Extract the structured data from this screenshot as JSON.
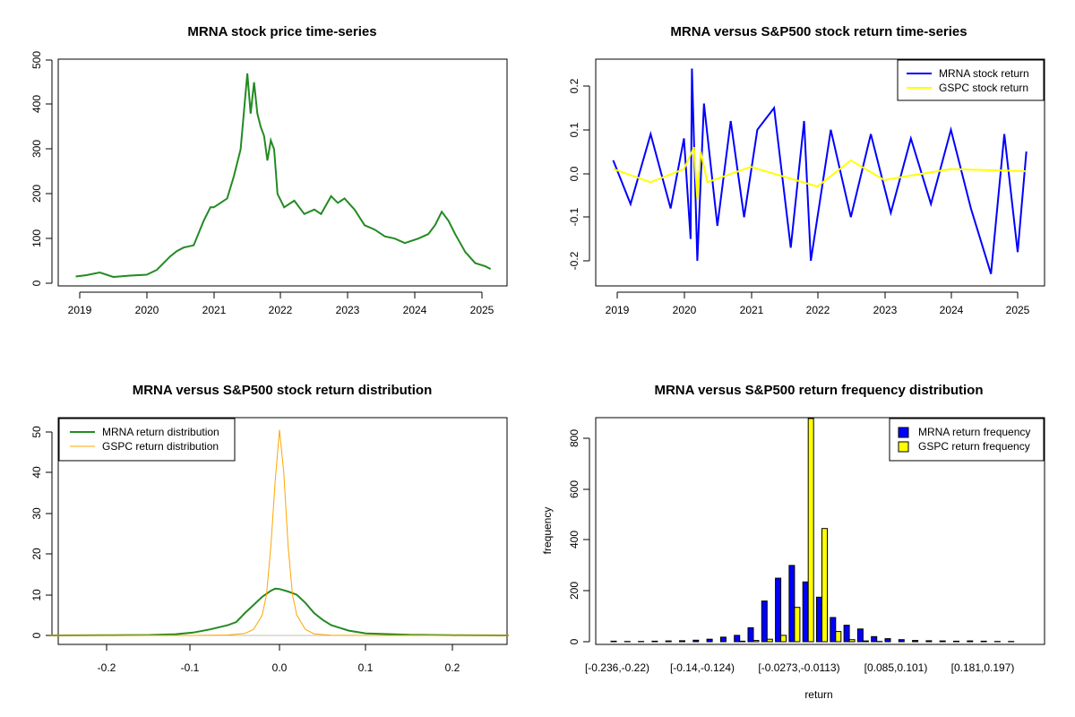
{
  "colors": {
    "mrna_price": "#228B22",
    "mrna_return": "#0000FF",
    "gspc_return": "#FFFF00",
    "mrna_density": "#228B22",
    "gspc_density": "#FFA500",
    "hist_mrna": "#0000FF",
    "hist_gspc": "#FFFF00"
  },
  "chart_data": [
    {
      "type": "line",
      "title": "MRNA stock price time-series",
      "xlabel": "",
      "ylabel": "",
      "xlim": [
        2018.85,
        2025.35
      ],
      "ylim": [
        -10,
        505
      ],
      "x_ticks": [
        2019,
        2020,
        2021,
        2022,
        2023,
        2024,
        2025
      ],
      "x_tick_labels": [
        "2019",
        "2020",
        "2021",
        "2022",
        "2023",
        "2024",
        "2025"
      ],
      "y_ticks": [
        0,
        100,
        200,
        300,
        400,
        500
      ],
      "y_tick_labels": [
        "0",
        "100",
        "200",
        "300",
        "400",
        "500"
      ],
      "grid": false,
      "series": [
        {
          "x": [
            2018.94,
            2019.1,
            2019.3,
            2019.5,
            2019.75,
            2020.0,
            2020.15,
            2020.35,
            2020.45,
            2020.55,
            2020.7,
            2020.85,
            2020.95,
            2021.0,
            2021.1,
            2021.2,
            2021.3,
            2021.4,
            2021.5,
            2021.55,
            2021.6,
            2021.65,
            2021.7,
            2021.75,
            2021.8,
            2021.85,
            2021.9,
            2021.95,
            2022.05,
            2022.2,
            2022.35,
            2022.5,
            2022.6,
            2022.75,
            2022.85,
            2022.95,
            2023.1,
            2023.25,
            2023.4,
            2023.55,
            2023.7,
            2023.85,
            2023.95,
            2024.05,
            2024.2,
            2024.3,
            2024.4,
            2024.5,
            2024.6,
            2024.75,
            2024.9,
            2025.05,
            2025.13
          ],
          "values": [
            15,
            18,
            24,
            14,
            17,
            19,
            30,
            60,
            72,
            80,
            85,
            140,
            170,
            170,
            180,
            190,
            240,
            300,
            470,
            380,
            450,
            380,
            350,
            330,
            275,
            320,
            300,
            200,
            170,
            185,
            155,
            165,
            155,
            195,
            180,
            190,
            165,
            130,
            120,
            105,
            100,
            90,
            95,
            100,
            110,
            130,
            160,
            140,
            110,
            70,
            45,
            38,
            32
          ]
        }
      ]
    },
    {
      "type": "line",
      "title": "MRNA versus S&P500 stock return time-series",
      "xlabel": "",
      "ylabel": "",
      "xlim": [
        2018.85,
        2025.35
      ],
      "ylim": [
        -0.25,
        0.26
      ],
      "x_ticks": [
        2019,
        2020,
        2021,
        2022,
        2023,
        2024,
        2025
      ],
      "x_tick_labels": [
        "2019",
        "2020",
        "2021",
        "2022",
        "2023",
        "2024",
        "2025"
      ],
      "y_ticks": [
        -0.2,
        -0.1,
        0.0,
        0.1,
        0.2
      ],
      "y_tick_labels": [
        "-0.2",
        "-0.1",
        "0.0",
        "0.1",
        "0.2"
      ],
      "legend_placement": "top-right",
      "grid": false,
      "series": [
        {
          "name": "MRNA stock return",
          "x": [
            2018.94,
            2019.2,
            2019.5,
            2019.8,
            2020.0,
            2020.1,
            2020.12,
            2020.2,
            2020.3,
            2020.5,
            2020.7,
            2020.9,
            2021.1,
            2021.35,
            2021.6,
            2021.8,
            2021.9,
            2022.2,
            2022.5,
            2022.8,
            2023.1,
            2023.4,
            2023.7,
            2024.0,
            2024.3,
            2024.6,
            2024.8,
            2025.0,
            2025.13
          ],
          "values": [
            0.03,
            -0.07,
            0.09,
            -0.08,
            0.08,
            -0.15,
            0.24,
            -0.2,
            0.16,
            -0.12,
            0.12,
            -0.1,
            0.1,
            0.15,
            -0.17,
            0.12,
            -0.2,
            0.1,
            -0.1,
            0.09,
            -0.09,
            0.08,
            -0.07,
            0.1,
            -0.08,
            -0.23,
            0.09,
            -0.18,
            0.05
          ]
        },
        {
          "name": "GSPC stock return",
          "x": [
            2018.94,
            2019.5,
            2020.0,
            2020.15,
            2020.2,
            2020.25,
            2020.35,
            2021.0,
            2022.0,
            2022.5,
            2023.0,
            2024.0,
            2025.13
          ],
          "values": [
            0.01,
            -0.02,
            0.01,
            0.06,
            -0.06,
            0.05,
            -0.02,
            0.015,
            -0.03,
            0.03,
            -0.015,
            0.01,
            0.005
          ]
        }
      ]
    },
    {
      "type": "line",
      "title": "MRNA versus S&P500 stock return distribution",
      "xlabel": "",
      "ylabel": "",
      "xlim": [
        -0.265,
        0.265
      ],
      "ylim": [
        -2,
        52
      ],
      "x_ticks": [
        -0.2,
        -0.1,
        0.0,
        0.1,
        0.2
      ],
      "x_tick_labels": [
        "-0.2",
        "-0.1",
        "0.0",
        "0.1",
        "0.2"
      ],
      "y_ticks": [
        0,
        10,
        20,
        30,
        40,
        50
      ],
      "y_tick_labels": [
        "0",
        "10",
        "20",
        "30",
        "40",
        "50"
      ],
      "legend_placement": "top-left",
      "grid": false,
      "series": [
        {
          "name": "MRNA return distribution",
          "x": [
            -0.265,
            -0.2,
            -0.15,
            -0.12,
            -0.1,
            -0.08,
            -0.06,
            -0.05,
            -0.04,
            -0.03,
            -0.02,
            -0.01,
            -0.005,
            0.0,
            0.01,
            0.02,
            0.03,
            0.04,
            0.05,
            0.06,
            0.08,
            0.1,
            0.15,
            0.2,
            0.265
          ],
          "values": [
            0.0,
            0.05,
            0.1,
            0.3,
            0.7,
            1.5,
            2.5,
            3.3,
            5.5,
            7.5,
            9.5,
            11.0,
            11.5,
            11.4,
            10.8,
            10.0,
            8.0,
            5.5,
            3.8,
            2.5,
            1.2,
            0.5,
            0.15,
            0.05,
            0.0
          ]
        },
        {
          "name": "GSPC return distribution",
          "x": [
            -0.265,
            -0.1,
            -0.06,
            -0.04,
            -0.03,
            -0.02,
            -0.015,
            -0.01,
            -0.005,
            0.0,
            0.005,
            0.01,
            0.015,
            0.02,
            0.03,
            0.04,
            0.06,
            0.1,
            0.265
          ],
          "values": [
            0.0,
            0.0,
            0.1,
            0.5,
            1.5,
            5.0,
            10.0,
            22.0,
            38.0,
            50.5,
            40.0,
            22.0,
            10.0,
            5.0,
            1.5,
            0.4,
            0.05,
            0.0,
            0.0
          ]
        }
      ]
    },
    {
      "type": "bar",
      "title": "MRNA versus S&P500 return frequency distribution",
      "xlabel": "return",
      "ylabel": "frequency",
      "ylim": [
        0,
        890
      ],
      "y_ticks": [
        0,
        200,
        400,
        600,
        800
      ],
      "y_tick_labels": [
        "0",
        "200",
        "400",
        "600",
        "800"
      ],
      "categories": [
        "[-0.236,-0.22)",
        "[-0.22,-0.204)",
        "[-0.204,-0.188)",
        "[-0.188,-0.172)",
        "[-0.172,-0.156)",
        "[-0.156,-0.14)",
        "[-0.14,-0.124)",
        "[-0.124,-0.108)",
        "[-0.108,-0.0913)",
        "[-0.0913,-0.0753)",
        "[-0.0753,-0.0593)",
        "[-0.0593,-0.0433)",
        "[-0.0433,-0.0273)",
        "[-0.0273,-0.0113)",
        "[-0.0113,0.00469)",
        "[0.00469,0.0207)",
        "[0.0207,0.0367)",
        "[0.0367,0.0527)",
        "[0.0527,0.0687)",
        "[0.0687,0.085)",
        "[0.085,0.101)",
        "[0.101,0.117)",
        "[0.117,0.133)",
        "[0.133,0.149)",
        "[0.149,0.165)",
        "[0.165,0.181)",
        "[0.181,0.197)",
        "[0.197,0.213)",
        "[0.213,0.229)",
        "[0.229,0.245)"
      ],
      "shown_category_labels": [
        "[-0.236,-0.22)",
        "[-0.14,-0.124)",
        "[-0.0273,-0.0113)",
        "[0.085,0.101)",
        "[0.181,0.197)"
      ],
      "legend_placement": "top-right",
      "grid": false,
      "series": [
        {
          "name": "MRNA return frequency",
          "values": [
            2,
            1,
            1,
            2,
            3,
            4,
            6,
            10,
            18,
            25,
            55,
            160,
            250,
            300,
            235,
            175,
            95,
            65,
            50,
            20,
            12,
            8,
            5,
            4,
            3,
            2,
            3,
            2,
            1,
            1
          ]
        },
        {
          "name": "GSPC return frequency",
          "values": [
            0,
            0,
            0,
            0,
            0,
            0,
            0,
            0,
            0,
            2,
            5,
            10,
            25,
            135,
            890,
            445,
            40,
            8,
            3,
            1,
            0,
            0,
            0,
            0,
            0,
            0,
            0,
            0,
            0,
            0
          ]
        }
      ]
    }
  ]
}
